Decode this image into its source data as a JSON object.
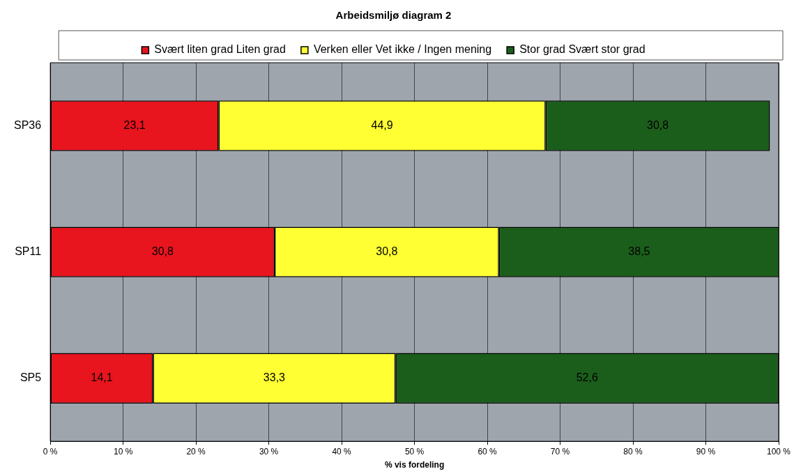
{
  "chart_data": {
    "type": "bar",
    "title": "Arbeidsmiljø diagram 2",
    "xlabel": "% vis fordeling",
    "orientation": "horizontal",
    "stacked": true,
    "categories": [
      "SP36",
      "SP11",
      "SP5"
    ],
    "series": [
      {
        "name": "Svært liten grad Liten grad",
        "color": "#e8141e",
        "values": [
          23.1,
          30.8,
          14.1
        ],
        "value_labels": [
          "23,1",
          "30,8",
          "14,1"
        ]
      },
      {
        "name": "Verken eller Vet ikke / Ingen mening",
        "color": "#ffff33",
        "values": [
          44.9,
          30.8,
          33.3
        ],
        "value_labels": [
          "44,9",
          "30,8",
          "33,3"
        ]
      },
      {
        "name": "Stor grad Svært stor grad",
        "color": "#1b5e1b",
        "values": [
          30.8,
          38.5,
          52.6
        ],
        "value_labels": [
          "30,8",
          "38,5",
          "52,6"
        ]
      }
    ],
    "xlim": [
      0,
      100
    ],
    "xticks": [
      {
        "value": 0,
        "label": "0 %"
      },
      {
        "value": 10,
        "label": "10 %"
      },
      {
        "value": 20,
        "label": "20 %"
      },
      {
        "value": 30,
        "label": "30 %"
      },
      {
        "value": 40,
        "label": "40 %"
      },
      {
        "value": 50,
        "label": "50 %"
      },
      {
        "value": 60,
        "label": "60 %"
      },
      {
        "value": 70,
        "label": "70 %"
      },
      {
        "value": 80,
        "label": "80 %"
      },
      {
        "value": 90,
        "label": "90 %"
      },
      {
        "value": 100,
        "label": "100 %"
      }
    ],
    "grid": "x",
    "legend": "top"
  }
}
